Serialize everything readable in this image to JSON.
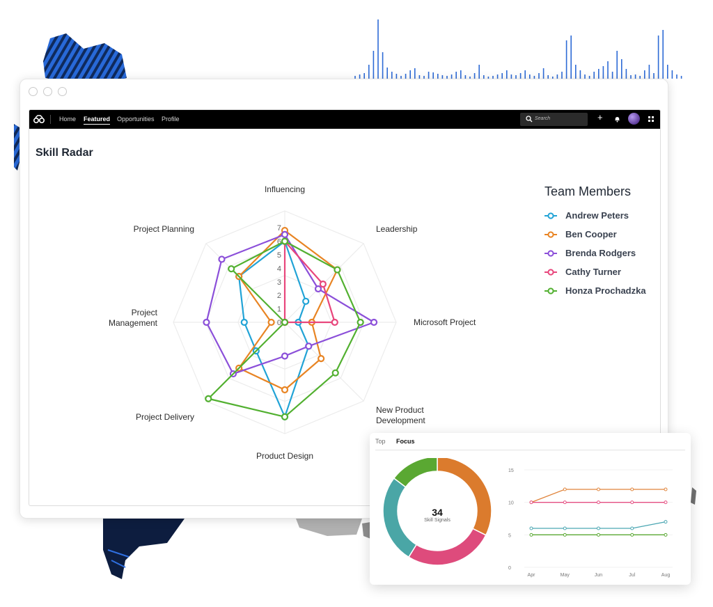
{
  "window": {
    "navbar": {
      "links": [
        "Home",
        "Featured",
        "Opportunities",
        "Profile"
      ],
      "active_link": "Featured",
      "search_placeholder": "Search",
      "add_icon": "plus-icon",
      "notification_icon": "bell-icon",
      "apps_icon": "grid-icon"
    },
    "page_title": "Skill Radar"
  },
  "legend": {
    "title": "Team Members",
    "members": [
      {
        "name": "Andrew Peters",
        "color": "#21a3d6"
      },
      {
        "name": "Ben Cooper",
        "color": "#e88423"
      },
      {
        "name": "Brenda Rodgers",
        "color": "#8b4fd9"
      },
      {
        "name": "Cathy Turner",
        "color": "#e8467c"
      },
      {
        "name": "Honza Prochadzka",
        "color": "#52b030"
      }
    ]
  },
  "card": {
    "tabs": [
      "Top",
      "Focus"
    ],
    "active_tab": "Focus",
    "donut_value": "34",
    "donut_label": "Skill Signals"
  },
  "chart_data": [
    {
      "type": "radar",
      "axes": [
        "Influencing",
        "Leadership",
        "Microsoft Project",
        "New Product Development",
        "Product Design",
        "Project Delivery",
        "Project Management",
        "Project Planning"
      ],
      "axis_ticks": [
        "0",
        "1",
        "2",
        "3",
        "4",
        "5",
        "6",
        "7"
      ],
      "rmax": 7,
      "series": [
        {
          "name": "Andrew Peters",
          "color": "#21a3d6",
          "values": [
            6,
            2.2,
            1,
            2.5,
            7,
            3,
            3,
            4.8
          ]
        },
        {
          "name": "Ben Cooper",
          "color": "#e88423",
          "values": [
            6.8,
            5.5,
            2,
            3.8,
            5,
            4.8,
            1,
            4.8
          ]
        },
        {
          "name": "Brenda Rodgers",
          "color": "#8b4fd9",
          "values": [
            6.5,
            3.5,
            6.6,
            2.5,
            2.5,
            5.4,
            5.8,
            6.6
          ]
        },
        {
          "name": "Cathy Turner",
          "color": "#e8467c",
          "values": [
            6,
            4,
            3.7,
            0,
            0,
            0,
            0,
            0
          ]
        },
        {
          "name": "Honza Prochadzka",
          "color": "#52b030",
          "values": [
            6,
            5.5,
            5.6,
            5.3,
            7,
            8,
            0,
            5.6
          ]
        }
      ]
    },
    {
      "type": "pie",
      "donut": true,
      "slices": [
        {
          "color": "#db7b2d",
          "value": 11
        },
        {
          "color": "#de4b7c",
          "value": 9
        },
        {
          "color": "#4aa6a6",
          "value": 9
        },
        {
          "color": "#5aa832",
          "value": 5
        }
      ]
    },
    {
      "type": "line",
      "categories": [
        "Apr",
        "May",
        "Jun",
        "Jul",
        "Aug"
      ],
      "y_ticks": [
        0,
        5,
        10,
        15
      ],
      "ylim": [
        0,
        15
      ],
      "series": [
        {
          "color": "#e0843b",
          "values": [
            10,
            12,
            12,
            12,
            12
          ]
        },
        {
          "color": "#e54d81",
          "values": [
            10,
            10,
            10,
            10,
            10
          ]
        },
        {
          "color": "#4aa6b2",
          "values": [
            6,
            6,
            6,
            6,
            7
          ]
        },
        {
          "color": "#5aa832",
          "values": [
            5,
            5,
            5,
            5,
            5
          ]
        }
      ]
    }
  ]
}
